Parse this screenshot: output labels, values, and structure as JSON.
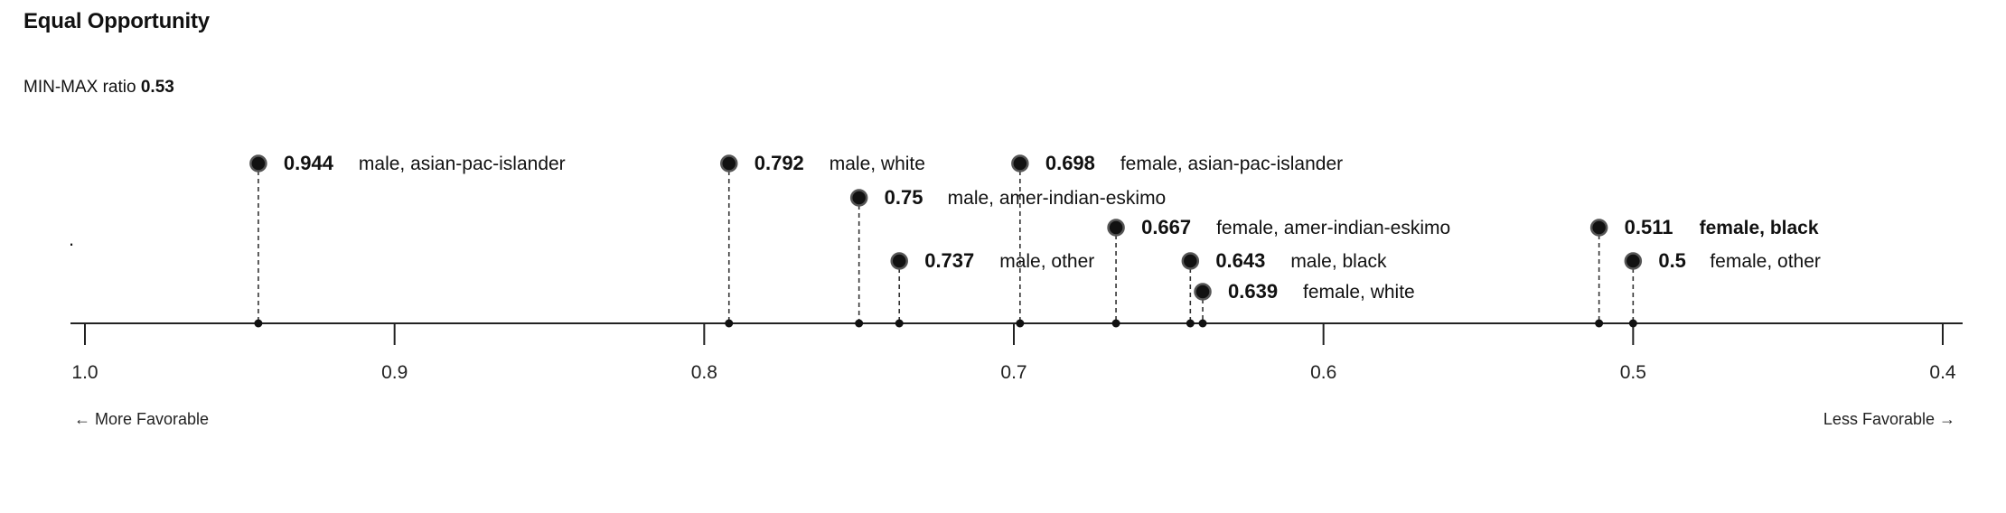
{
  "header": {
    "title": "Equal Opportunity",
    "ratio_label": "MIN-MAX ratio",
    "ratio_value": "0.53",
    "stray_mark": "."
  },
  "directions": {
    "left": "← More Favorable",
    "right": "Less Favorable →"
  },
  "chart_data": {
    "type": "scatter",
    "title": "Equal Opportunity",
    "xlim": [
      1.0,
      0.4
    ],
    "x_reversed": true,
    "ticks": [
      {
        "value": 1.0,
        "label": "1.0"
      },
      {
        "value": 0.9,
        "label": "0.9"
      },
      {
        "value": 0.8,
        "label": "0.8"
      },
      {
        "value": 0.7,
        "label": "0.7"
      },
      {
        "value": 0.6,
        "label": "0.6"
      },
      {
        "value": 0.5,
        "label": "0.5"
      },
      {
        "value": 0.4,
        "label": "0.4"
      }
    ],
    "points": [
      {
        "value": 0.944,
        "value_label": "0.944",
        "label": "male, asian-pac-islander",
        "row": 0,
        "bold": false
      },
      {
        "value": 0.792,
        "value_label": "0.792",
        "label": "male, white",
        "row": 0,
        "bold": false
      },
      {
        "value": 0.75,
        "value_label": "0.75",
        "label": "male, amer-indian-eskimo",
        "row": 1,
        "bold": false
      },
      {
        "value": 0.737,
        "value_label": "0.737",
        "label": "male, other",
        "row": 3,
        "bold": false
      },
      {
        "value": 0.698,
        "value_label": "0.698",
        "label": "female, asian-pac-islander",
        "row": 0,
        "bold": false
      },
      {
        "value": 0.667,
        "value_label": "0.667",
        "label": "female, amer-indian-eskimo",
        "row": 2,
        "bold": false
      },
      {
        "value": 0.643,
        "value_label": "0.643",
        "label": "male, black",
        "row": 3,
        "bold": false
      },
      {
        "value": 0.639,
        "value_label": "0.639",
        "label": "female, white",
        "row": 4,
        "bold": false
      },
      {
        "value": 0.511,
        "value_label": "0.511",
        "label": "female, black",
        "row": 2,
        "bold": true
      },
      {
        "value": 0.5,
        "value_label": "0.5",
        "label": "female, other",
        "row": 3,
        "bold": false
      }
    ]
  }
}
